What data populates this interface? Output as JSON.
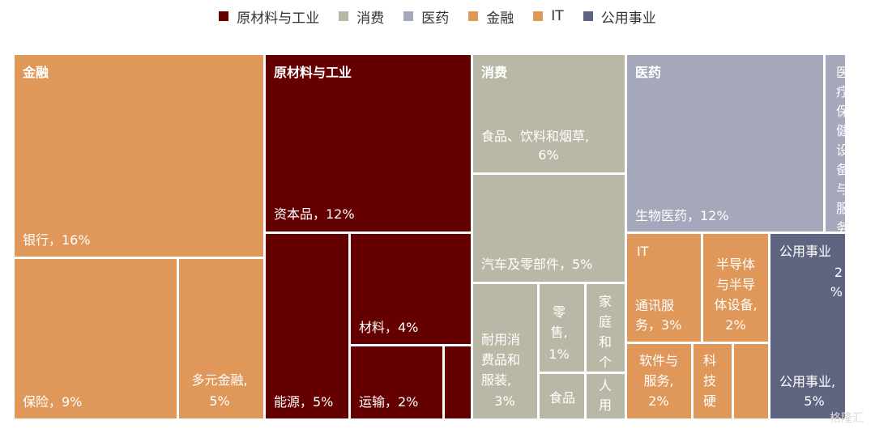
{
  "legend": [
    {
      "label": "原材料与工业",
      "color": "#650000"
    },
    {
      "label": "消费",
      "color": "#b9b8a6"
    },
    {
      "label": "医药",
      "color": "#a5a7bb"
    },
    {
      "label": "金融",
      "color": "#e0975a"
    },
    {
      "label": "IT",
      "color": "#e0975a"
    },
    {
      "label": "公用事业",
      "color": "#5f6480"
    }
  ],
  "watermark": "格隆汇",
  "chart_data": {
    "type": "treemap",
    "unit": "%",
    "sectors": [
      {
        "name": "金融",
        "color": "#e0975a",
        "children": [
          {
            "label": "银行，16%",
            "value": 16
          },
          {
            "label": "保险，9%",
            "value": 9
          },
          {
            "label": "多元金融，5%",
            "value": 5
          }
        ]
      },
      {
        "name": "原材料与工业",
        "color": "#650000",
        "children": [
          {
            "label": "资本品，12%",
            "value": 12
          },
          {
            "label": "能源，5%",
            "value": 5
          },
          {
            "label": "材料，4%",
            "value": 4
          },
          {
            "label": "运输，2%",
            "value": 2
          },
          {
            "label": "",
            "value": 1
          }
        ]
      },
      {
        "name": "消费",
        "color": "#b9b8a6",
        "children": [
          {
            "label": "食品、饮料和烟草，6%",
            "value": 6
          },
          {
            "label": "汽车及零部件，5%",
            "value": 5
          },
          {
            "label": "耐用消费品和服装，3%",
            "value": 3
          },
          {
            "label": "零售，1%",
            "value": 1
          },
          {
            "label": "家庭和个人用品",
            "value": 1
          },
          {
            "label": "食品和主",
            "value": 1
          },
          {
            "label": "消费",
            "value": 1
          }
        ]
      },
      {
        "name": "医药",
        "color": "#a5a7bb",
        "children": [
          {
            "label": "生物医药，12%",
            "value": 12
          },
          {
            "label": "医疗保健设备与服务",
            "value": 2
          }
        ]
      },
      {
        "name": "IT",
        "color": "#e0975a",
        "children": [
          {
            "label": "通讯服务，3%",
            "value": 3
          },
          {
            "label": "半导体与半导体设备，2%",
            "value": 2
          },
          {
            "label": "软件与服务，2%",
            "value": 2
          },
          {
            "label": "科技硬件",
            "value": 1
          },
          {
            "label": "",
            "value": 1
          }
        ]
      },
      {
        "name": "公用事业",
        "color": "#5f6480",
        "children": [
          {
            "label": "公用事业，5%",
            "value": 5
          },
          {
            "label": "2%",
            "value": 2
          }
        ]
      }
    ]
  }
}
